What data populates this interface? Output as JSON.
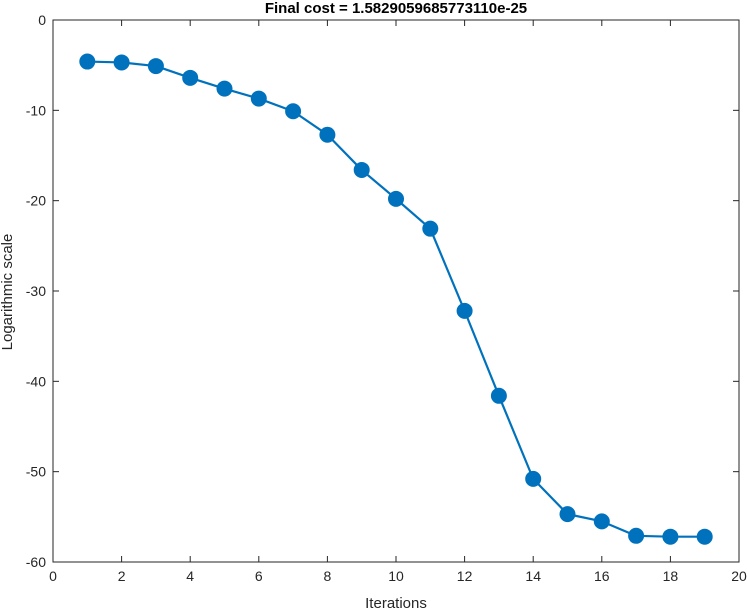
{
  "chart_data": {
    "type": "line",
    "title": "Final cost = 1.5829059685773110e-25",
    "xlabel": "Iterations",
    "ylabel": "Logarithmic scale",
    "xlim": [
      0,
      20
    ],
    "ylim": [
      -60,
      0
    ],
    "xticks": [
      0,
      2,
      4,
      6,
      8,
      10,
      12,
      14,
      16,
      18,
      20
    ],
    "yticks": [
      -60,
      -50,
      -40,
      -30,
      -20,
      -10,
      0
    ],
    "grid": false,
    "series": [
      {
        "color": "#0072BD",
        "marker": "circle",
        "x": [
          1,
          2,
          3,
          4,
          5,
          6,
          7,
          8,
          9,
          10,
          11,
          12,
          13,
          14,
          15,
          16,
          17,
          18,
          19
        ],
        "y": [
          -4.6,
          -4.7,
          -5.1,
          -6.4,
          -7.6,
          -8.7,
          -10.1,
          -12.7,
          -16.6,
          -19.8,
          -23.1,
          -32.2,
          -41.6,
          -50.8,
          -54.7,
          -55.5,
          -57.1,
          -57.2,
          -57.2
        ]
      }
    ]
  }
}
